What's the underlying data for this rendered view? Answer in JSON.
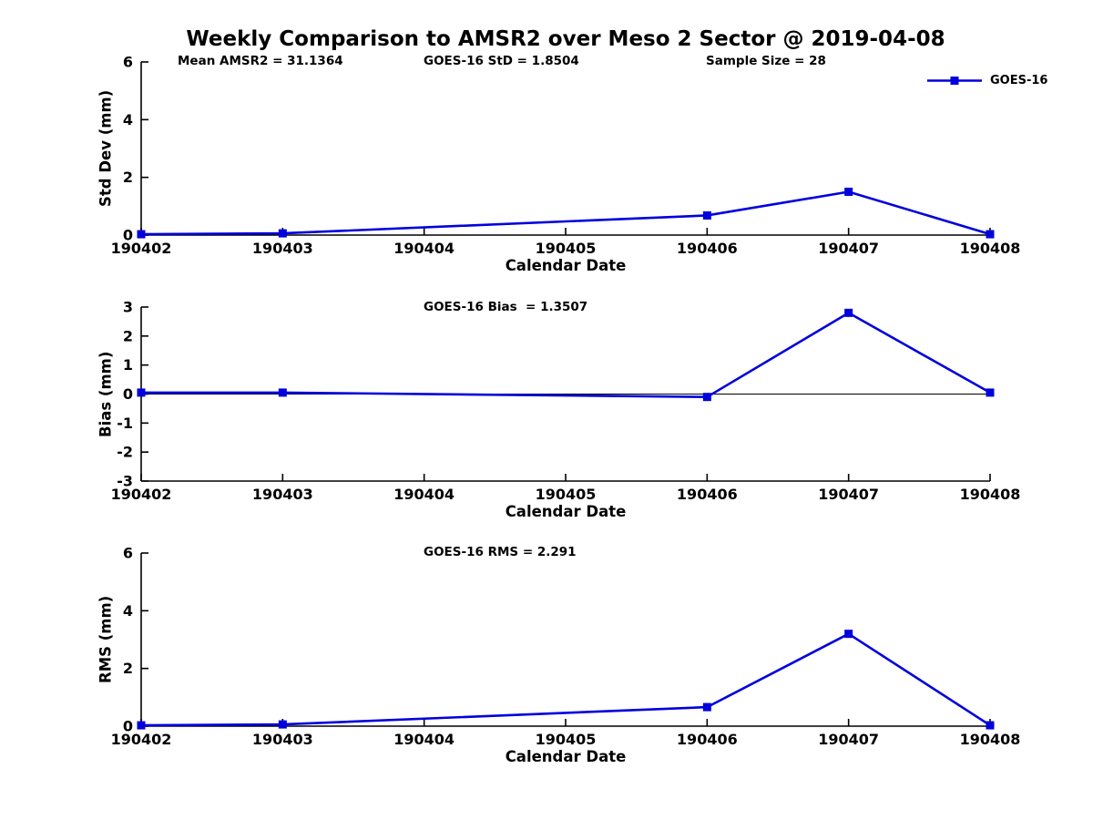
{
  "figure": {
    "title": "Weekly Comparison to AMSR2 over Meso 2 Sector @ 2019-04-08"
  },
  "legend": {
    "label": "GOES-16"
  },
  "colors": {
    "line": "#0000dd",
    "axis": "#000000",
    "text": "#000000",
    "background": "#ffffff"
  },
  "chart_data": [
    {
      "type": "line",
      "name": "std-dev-panel",
      "annotations": [
        "Mean AMSR2 = 31.1364",
        "GOES-16 StD = 1.8504",
        "Sample Size = 28"
      ],
      "xlabel": "Calendar Date",
      "ylabel": "Std Dev (mm)",
      "x_ticklabels": [
        "190402",
        "190403",
        "190404",
        "190405",
        "190406",
        "190407",
        "190408"
      ],
      "y_ticks": [
        0,
        2,
        4,
        6
      ],
      "ylim": [
        0,
        6
      ],
      "grid": false,
      "legend_position": "top-right-outside",
      "series": [
        {
          "name": "GOES-16",
          "marker": "square",
          "x": [
            "190402",
            "190403",
            "190406",
            "190407",
            "190408"
          ],
          "values": [
            0.03,
            0.06,
            0.68,
            1.5,
            0.03
          ]
        }
      ]
    },
    {
      "type": "line",
      "name": "bias-panel",
      "annotations": [
        "GOES-16 Bias  = 1.3507"
      ],
      "xlabel": "Calendar Date",
      "ylabel": "Bias (mm)",
      "x_ticklabels": [
        "190402",
        "190403",
        "190404",
        "190405",
        "190406",
        "190407",
        "190408"
      ],
      "y_ticks": [
        -3,
        -2,
        -1,
        0,
        1,
        2,
        3
      ],
      "ylim": [
        -3,
        3
      ],
      "grid": false,
      "zero_line": true,
      "series": [
        {
          "name": "GOES-16",
          "marker": "square",
          "x": [
            "190402",
            "190403",
            "190406",
            "190407",
            "190408"
          ],
          "values": [
            0.05,
            0.05,
            -0.1,
            2.8,
            0.05
          ]
        }
      ]
    },
    {
      "type": "line",
      "name": "rms-panel",
      "annotations": [
        "GOES-16 RMS = 2.291"
      ],
      "xlabel": "Calendar Date",
      "ylabel": "RMS (mm)",
      "x_ticklabels": [
        "190402",
        "190403",
        "190404",
        "190405",
        "190406",
        "190407",
        "190408"
      ],
      "y_ticks": [
        0,
        2,
        4,
        6
      ],
      "ylim": [
        0,
        6
      ],
      "grid": false,
      "series": [
        {
          "name": "GOES-16",
          "marker": "square",
          "x": [
            "190402",
            "190403",
            "190406",
            "190407",
            "190408"
          ],
          "values": [
            0.03,
            0.06,
            0.66,
            3.2,
            0.03
          ]
        }
      ]
    }
  ]
}
